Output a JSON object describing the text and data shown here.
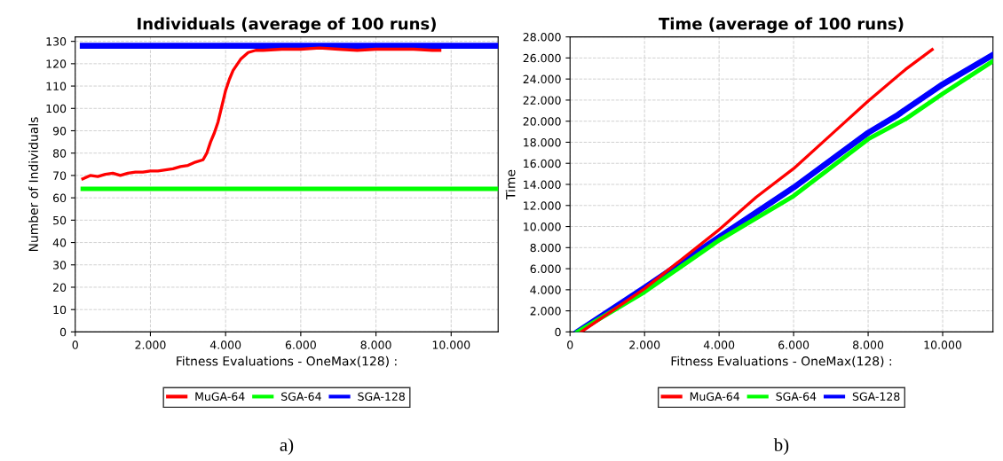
{
  "chart_data": [
    {
      "type": "line",
      "title": "Individuals (average of 100 runs)",
      "xlabel": "Fitness Evaluations - OneMax(128) :",
      "ylabel": "Number of Individuals",
      "xlim": [
        0,
        11250
      ],
      "xticks": [
        0,
        {
          "value": 2000,
          "label": "2.000"
        },
        {
          "value": 4000,
          "label": "4.000"
        },
        {
          "value": 6000,
          "label": "6.000"
        },
        {
          "value": 8000,
          "label": "8.000"
        },
        {
          "value": 10000,
          "label": "10.000"
        }
      ],
      "ylim": [
        0,
        132
      ],
      "yticks": [
        0,
        10,
        20,
        30,
        40,
        50,
        60,
        70,
        80,
        90,
        100,
        110,
        120,
        130
      ],
      "grid": true,
      "legend": "bottom",
      "line_style": "solid",
      "annotations": [
        "a)"
      ],
      "series": [
        {
          "name": "MuGA-64",
          "color": "#ff0000",
          "x": [
            200,
            400,
            600,
            800,
            1000,
            1200,
            1400,
            1600,
            1800,
            2000,
            2200,
            2400,
            2600,
            2800,
            3000,
            3200,
            3400,
            3500,
            3600,
            3700,
            3800,
            3900,
            4000,
            4100,
            4200,
            4400,
            4600,
            4800,
            5000,
            5500,
            6000,
            6500,
            7000,
            7500,
            8000,
            8500,
            9000,
            9500,
            9700
          ],
          "values": [
            68.5,
            70,
            69.5,
            70.5,
            71,
            70,
            71,
            71.5,
            71.5,
            72,
            72,
            72.5,
            73,
            74,
            74.5,
            76,
            77,
            80,
            85,
            89,
            94,
            101,
            108,
            113,
            117,
            122,
            125,
            126,
            126,
            126.5,
            126.5,
            127,
            126.5,
            126,
            126.5,
            126.5,
            126.5,
            126,
            126
          ]
        },
        {
          "name": "SGA-64",
          "color": "#00ff00",
          "x": [
            200,
            11250
          ],
          "values": [
            64,
            64
          ]
        },
        {
          "name": "SGA-128",
          "color": "#0000ff",
          "x": [
            200,
            11250
          ],
          "values": [
            128,
            128
          ]
        }
      ]
    },
    {
      "type": "line",
      "title": "Time (average of 100 runs)",
      "xlabel": "Fitness Evaluations - OneMax(128) :",
      "ylabel": "Time",
      "xlim": [
        0,
        11350
      ],
      "xticks": [
        0,
        {
          "value": 2000,
          "label": "2.000"
        },
        {
          "value": 4000,
          "label": "4.000"
        },
        {
          "value": 6000,
          "label": "6.000"
        },
        {
          "value": 8000,
          "label": "8.000"
        },
        {
          "value": 10000,
          "label": "10.000"
        }
      ],
      "ylim": [
        0,
        28000
      ],
      "yticks": [
        0,
        {
          "value": 2000,
          "label": "2.000"
        },
        {
          "value": 4000,
          "label": "4.000"
        },
        {
          "value": 6000,
          "label": "6.000"
        },
        {
          "value": 8000,
          "label": "8.000"
        },
        {
          "value": 10000,
          "label": "10.000"
        },
        {
          "value": 12000,
          "label": "12.000"
        },
        {
          "value": 14000,
          "label": "14.000"
        },
        {
          "value": 16000,
          "label": "16.000"
        },
        {
          "value": 18000,
          "label": "18.000"
        },
        {
          "value": 20000,
          "label": "20.000"
        },
        {
          "value": 22000,
          "label": "22.000"
        },
        {
          "value": 24000,
          "label": "24.000"
        },
        {
          "value": 26000,
          "label": "26.000"
        },
        {
          "value": 28000,
          "label": "28.000"
        }
      ],
      "grid": true,
      "legend": "bottom",
      "line_style": "solid",
      "annotations": [
        "b)"
      ],
      "series": [
        {
          "name": "MuGA-64",
          "color": "#ff0000",
          "x": [
            300,
            2000,
            4000,
            5000,
            6000,
            7000,
            8000,
            9000,
            9720
          ],
          "values": [
            0,
            4100,
            9700,
            12800,
            15500,
            18700,
            21900,
            24900,
            26800
          ]
        },
        {
          "name": "SGA-64",
          "color": "#00ff00",
          "x": [
            200,
            2000,
            4000,
            6000,
            8000,
            9000,
            10000,
            11350
          ],
          "values": [
            0,
            3800,
            8700,
            12900,
            18300,
            20200,
            22600,
            25700
          ]
        },
        {
          "name": "SGA-128",
          "color": "#0000ff",
          "x": [
            200,
            2000,
            4000,
            6000,
            8000,
            8800,
            9000,
            10000,
            11350
          ],
          "values": [
            0,
            4200,
            9000,
            13700,
            18900,
            20600,
            21100,
            23500,
            26300
          ]
        }
      ]
    }
  ]
}
